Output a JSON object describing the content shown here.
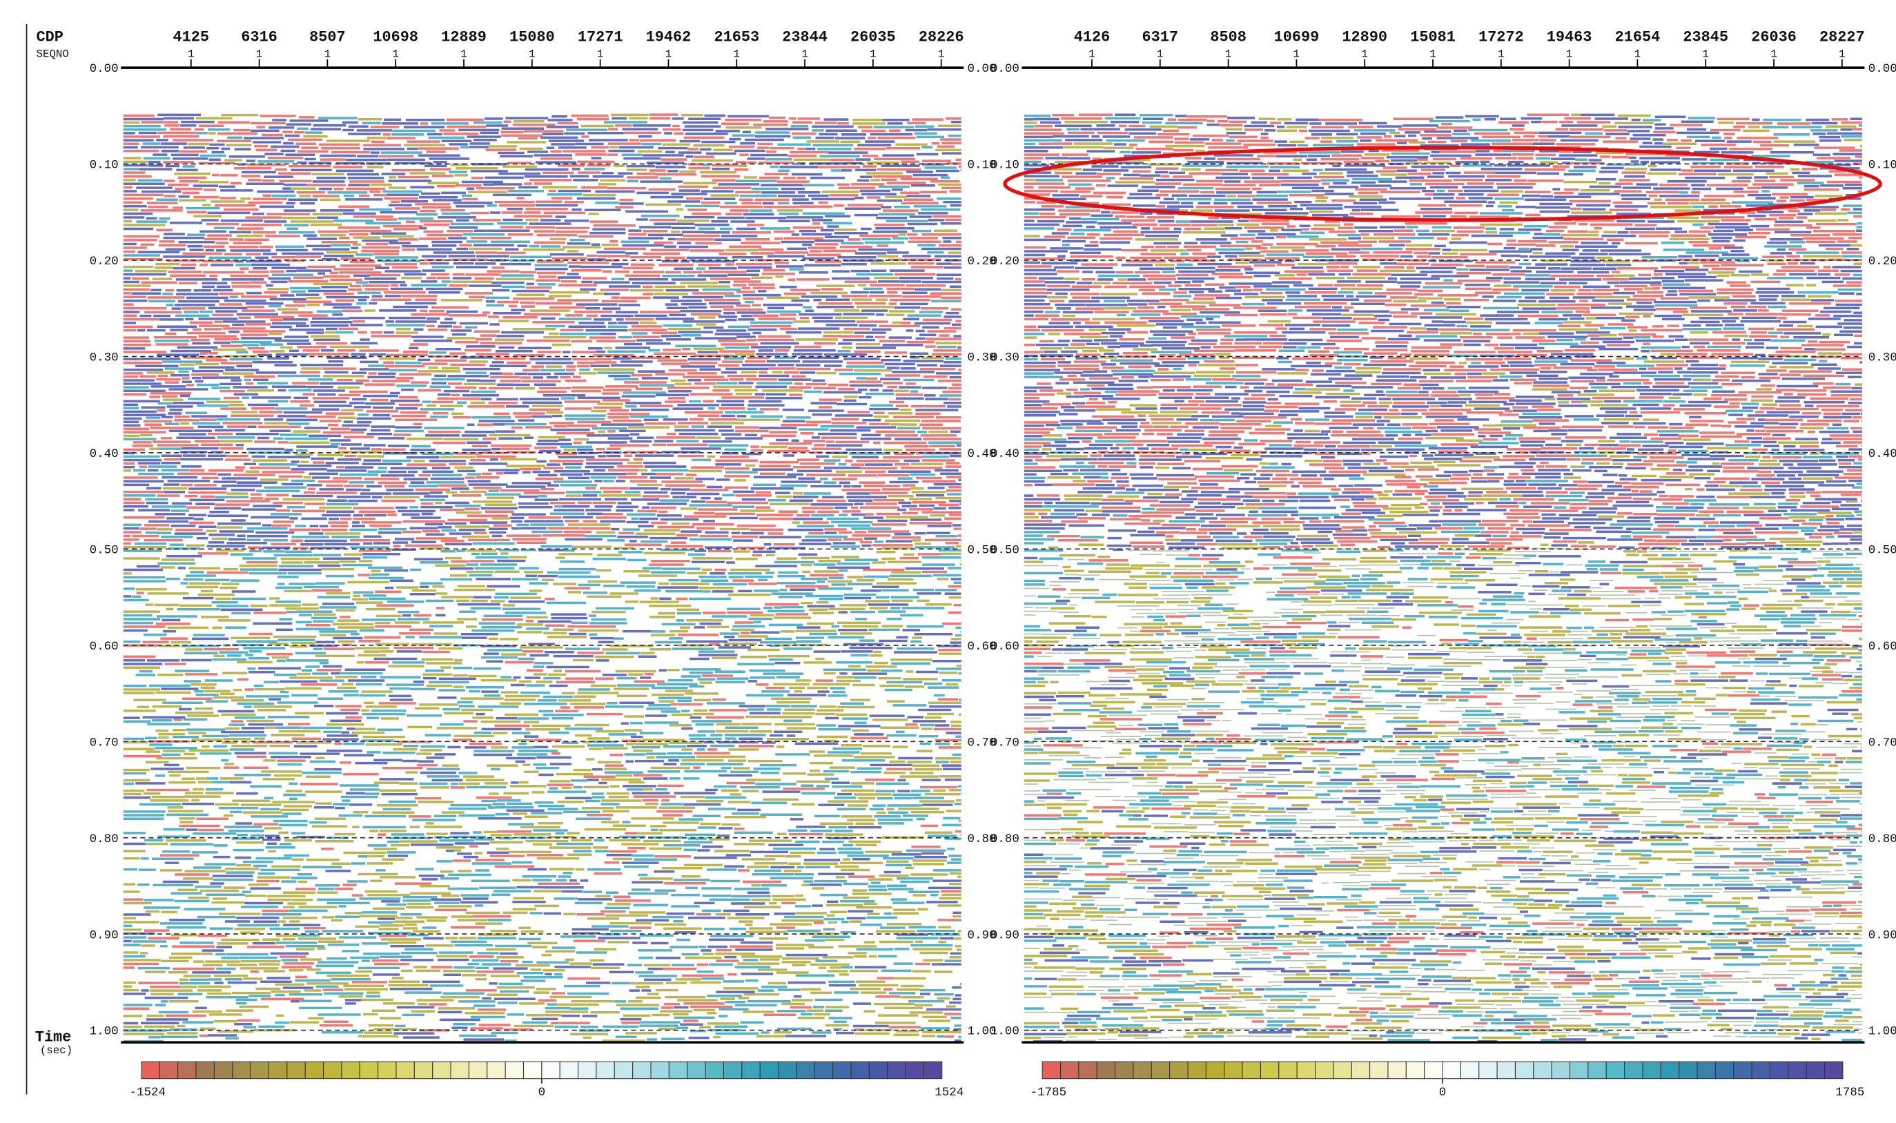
{
  "header": {
    "cdp": "CDP",
    "seqno": "SEQNO"
  },
  "axis": {
    "label": "Time",
    "unit": "(sec)"
  },
  "panels": [
    {
      "cdp_labels": [
        "4125",
        "6316",
        "8507",
        "10698",
        "12889",
        "15080",
        "17271",
        "19462",
        "21653",
        "23844",
        "26035",
        "28226"
      ],
      "seqno_labels": [
        "1",
        "1",
        "1",
        "1",
        "1",
        "1",
        "1",
        "1",
        "1",
        "1",
        "1",
        "1"
      ],
      "time_labels": [
        "0.00",
        "0.10",
        "0.20",
        "0.30",
        "0.40",
        "0.50",
        "0.60",
        "0.70",
        "0.80",
        "0.90",
        "1.00"
      ],
      "colorbar": {
        "min": "-1524",
        "mid": "0",
        "max": "1524"
      }
    },
    {
      "cdp_labels": [
        "4126",
        "6317",
        "8508",
        "10699",
        "12890",
        "15081",
        "17272",
        "19463",
        "21654",
        "23845",
        "26036",
        "28227"
      ],
      "seqno_labels": [
        "1",
        "1",
        "1",
        "1",
        "1",
        "1",
        "1",
        "1",
        "1",
        "1",
        "1",
        "1"
      ],
      "time_labels": [
        "0.00",
        "0.10",
        "0.20",
        "0.30",
        "0.40",
        "0.50",
        "0.60",
        "0.70",
        "0.80",
        "0.90",
        "1.00"
      ],
      "colorbar": {
        "min": "-1785",
        "mid": "0",
        "max": "1785"
      }
    }
  ]
}
